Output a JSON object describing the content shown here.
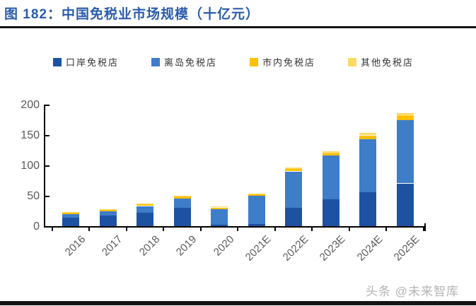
{
  "page": {
    "title": "图 182：中国免税业市场规模（十亿元）",
    "watermark": "头条 @未来智库"
  },
  "colors": {
    "title": "#2B5CAC",
    "rule": "#141414",
    "axis": "#000000",
    "tick_label": "#595959",
    "legend_label": "#333333",
    "watermark": "#B3B3B3"
  },
  "chart_data": {
    "type": "bar",
    "stacked": true,
    "title": "中国免税业市场规模（十亿元）",
    "unit": "十亿元 (billion yuan)",
    "categories": [
      "2016",
      "2017",
      "2018",
      "2019",
      "2020",
      "2021E",
      "2022E",
      "2023E",
      "2024E",
      "2025E"
    ],
    "series": [
      {
        "name": "口岸免税店",
        "color": "#1D52A2",
        "values": [
          14,
          17,
          22,
          30,
          3,
          4,
          31,
          44,
          56,
          70
        ]
      },
      {
        "name": "离岛免税店",
        "color": "#3E7DC8",
        "values": [
          6,
          7,
          11,
          15,
          25,
          46,
          59,
          72,
          87,
          104
        ]
      },
      {
        "name": "市内免税店",
        "color": "#FFC000",
        "values": [
          2,
          2.5,
          2.5,
          3.5,
          2.5,
          2.5,
          4,
          4.5,
          6,
          7
        ]
      },
      {
        "name": "其他免税店",
        "color": "#FFD966",
        "values": [
          1,
          1.5,
          1.5,
          1.5,
          1.5,
          1.5,
          2.5,
          3,
          4,
          5
        ]
      }
    ],
    "totals": [
      23,
      28,
      37,
      50,
      32,
      54,
      96.5,
      123.5,
      153,
      186
    ],
    "ylim": [
      0,
      200
    ],
    "yticks": [
      0,
      50,
      100,
      150,
      200
    ],
    "xlabel": "",
    "ylabel": "",
    "grid": false,
    "legend_position": "top"
  }
}
